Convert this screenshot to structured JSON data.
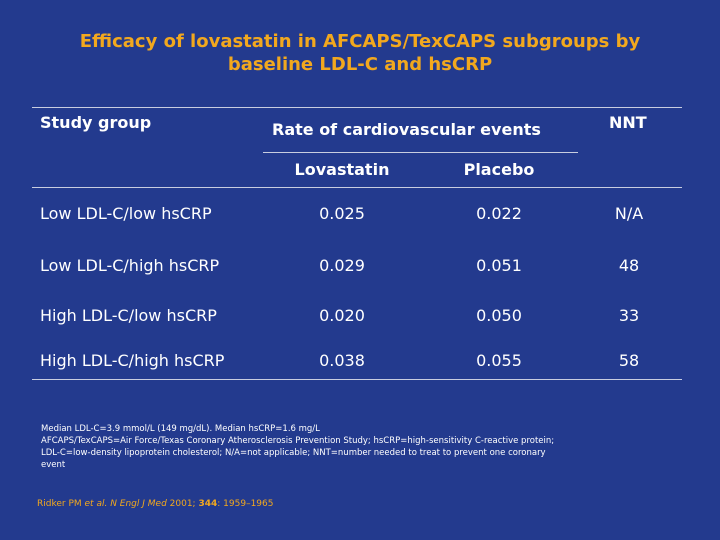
{
  "title": {
    "line1": "Efficacy of lovastatin in AFCAPS/TexCAPS subgroups by",
    "line2": "baseline LDL-C and hsCRP"
  },
  "table": {
    "col_study_group": "Study group",
    "col_rate": "Rate of cardiovascular events",
    "col_nnt": "NNT",
    "sub_lovastatin": "Lovastatin",
    "sub_placebo": "Placebo",
    "rows": [
      {
        "group": "Low LDL-C/low hsCRP",
        "lovastatin": "0.025",
        "placebo": "0.022",
        "nnt": "N/A"
      },
      {
        "group": "Low LDL-C/high hsCRP",
        "lovastatin": "0.029",
        "placebo": "0.051",
        "nnt": "48"
      },
      {
        "group": "High LDL-C/low hsCRP",
        "lovastatin": "0.020",
        "placebo": "0.050",
        "nnt": "33"
      },
      {
        "group": "High LDL-C/high hsCRP",
        "lovastatin": "0.038",
        "placebo": "0.055",
        "nnt": "58"
      }
    ]
  },
  "footnote": {
    "line1": "Median LDL-C=3.9 mmol/L (149 mg/dL). Median hsCRP=1.6 mg/L",
    "line2": "AFCAPS/TexCAPS=Air Force/Texas Coronary Atherosclerosis Prevention Study; hsCRP=high-sensitivity C-reactive protein;",
    "line3": "LDL-C=low-density lipoprotein cholesterol; N/A=not applicable; NNT=number needed to treat to prevent one coronary",
    "line4": "event"
  },
  "reference": {
    "authors": "Ridker PM ",
    "etal": "et al.",
    "journal": "N Engl J Med",
    "year": " 2001; ",
    "volume": "344",
    "pages": ": 1959–1965"
  },
  "colors": {
    "background": "#233a8e",
    "title": "#f2a81e",
    "text": "#ffffff",
    "rule": "#c8cde0"
  }
}
